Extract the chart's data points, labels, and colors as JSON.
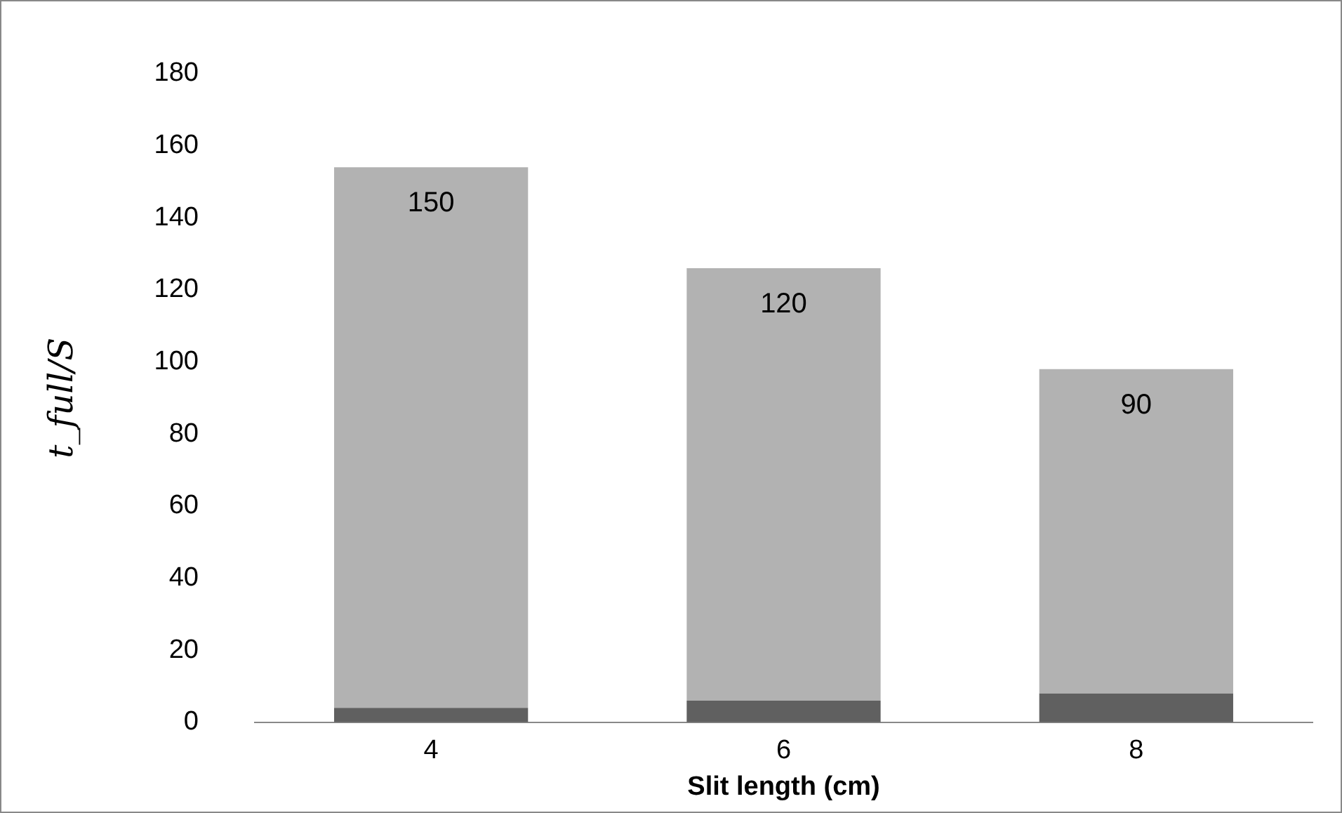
{
  "chart_data": {
    "type": "bar",
    "xlabel": "Slit length (cm)",
    "ylabel": "t_full/S",
    "categories": [
      "4",
      "6",
      "8"
    ],
    "stacked": true,
    "ylim": [
      0,
      180
    ],
    "yticks": [
      0,
      20,
      40,
      60,
      80,
      100,
      120,
      140,
      160,
      180
    ],
    "grid": false,
    "legend": false,
    "series": [
      {
        "color": "#606060",
        "values": [
          4,
          6,
          8
        ]
      },
      {
        "color": "#b2b2b2",
        "values": [
          150,
          120,
          90
        ],
        "value_labels": [
          "150",
          "120",
          "90"
        ]
      }
    ]
  }
}
